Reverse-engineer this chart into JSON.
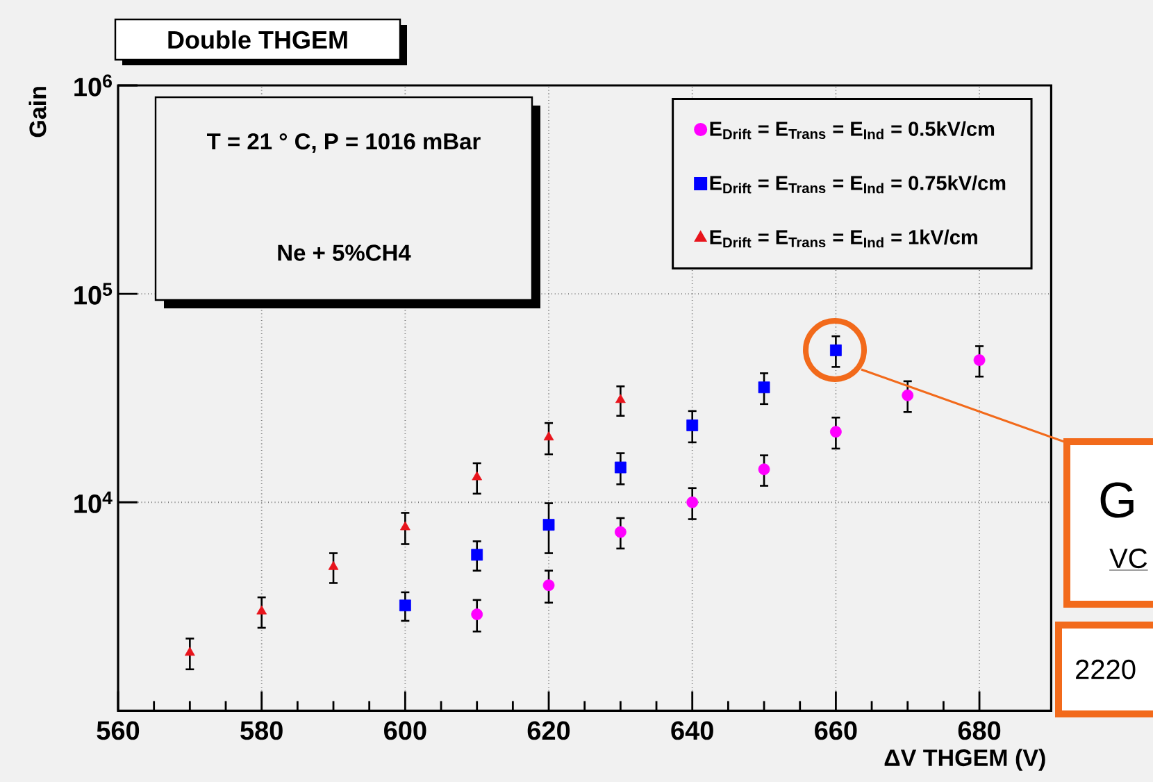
{
  "chart_data": {
    "type": "scatter",
    "title": "Double THGEM",
    "xlabel": "ΔV THGEM (V)",
    "ylabel": "Gain",
    "annotations": [
      "T = 21 ° C, P = 1016 mBar",
      "Ne + 5%CH4",
      "G",
      "VC",
      "2220"
    ],
    "log": "y",
    "grid": true,
    "legend": "top right",
    "xlim": [
      560,
      690
    ],
    "xticks": [
      560,
      580,
      600,
      620,
      640,
      660,
      680
    ],
    "ylim": [
      1000,
      1000000
    ],
    "yticks": [
      {
        "value": 10000,
        "label": "10$^{4}$"
      },
      {
        "value": 100000,
        "label": "10$^{5}$"
      },
      {
        "value": 1000000,
        "label": "10$^{6}$"
      }
    ],
    "series": [
      {
        "name": "E$_{Drift}$ = E$_{Trans}$ = E$_{Ind}$ = 0.5kV/cm",
        "color": "#ff00ff",
        "marker": "circle",
        "x": [
          610,
          620,
          630,
          640,
          650,
          660,
          670,
          680
        ],
        "values": [
          2900,
          4000,
          7200,
          10000,
          14400,
          21800,
          32600,
          48100
        ],
        "errors": [
          500,
          700,
          1200,
          1700,
          2400,
          3700,
          5500,
          8000
        ]
      },
      {
        "name": "E$_{Drift}$ = E$_{Trans}$ = E$_{Ind}$ = 0.75kV/cm",
        "color": "#0000ff",
        "marker": "square",
        "x": [
          600,
          610,
          620,
          630,
          640,
          650,
          660
        ],
        "values": [
          3200,
          5600,
          7800,
          14700,
          23400,
          35600,
          53600
        ],
        "errors": [
          500,
          900,
          2100,
          2500,
          4000,
          6000,
          9000
        ]
      },
      {
        "name": "E$_{Drift}$ = E$_{Trans}$ = E$_{Ind}$ = 1kV/cm",
        "color": "#e8141c",
        "marker": "triangle",
        "x": [
          570,
          580,
          590,
          600,
          610,
          620,
          630
        ],
        "values": [
          1900,
          3000,
          4900,
          7600,
          13200,
          20500,
          31000
        ],
        "errors": [
          320,
          500,
          800,
          1300,
          2200,
          3500,
          5000
        ]
      }
    ]
  }
}
